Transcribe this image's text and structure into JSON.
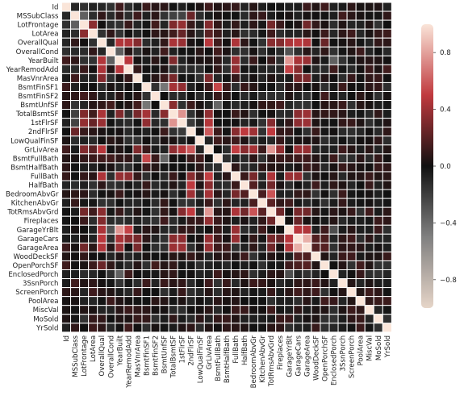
{
  "chart_data": {
    "type": "heatmap",
    "title": "",
    "xlabel": "",
    "ylabel": "",
    "labels": [
      "Id",
      "MSSubClass",
      "LotFrontage",
      "LotArea",
      "OverallQual",
      "OverallCond",
      "YearBuilt",
      "YearRemodAdd",
      "MasVnrArea",
      "BsmtFinSF1",
      "BsmtFinSF2",
      "BsmtUnfSF",
      "TotalBsmtSF",
      "1stFlrSF",
      "2ndFlrSF",
      "LowQualFinSF",
      "GrLivArea",
      "BsmtFullBath",
      "BsmtHalfBath",
      "FullBath",
      "HalfBath",
      "BedroomAbvGr",
      "KitchenAbvGr",
      "TotRmsAbvGrd",
      "Fireplaces",
      "GarageYrBlt",
      "GarageCars",
      "GarageArea",
      "WoodDeckSF",
      "OpenPorchSF",
      "EnclosedPorch",
      "3SsnPorch",
      "ScreenPorch",
      "PoolArea",
      "MiscVal",
      "MoSold",
      "YrSold"
    ],
    "strong_pairs": [
      [
        "MSSubClass",
        "LotFrontage",
        -0.39
      ],
      [
        "MSSubClass",
        "LotArea",
        -0.14
      ],
      [
        "MSSubClass",
        "2ndFlrSF",
        0.31
      ],
      [
        "MSSubClass",
        "1stFlrSF",
        -0.25
      ],
      [
        "MSSubClass",
        "TotalBsmtSF",
        -0.24
      ],
      [
        "LotFrontage",
        "LotArea",
        0.43
      ],
      [
        "LotFrontage",
        "1stFlrSF",
        0.46
      ],
      [
        "LotFrontage",
        "TotalBsmtSF",
        0.39
      ],
      [
        "LotFrontage",
        "GrLivArea",
        0.4
      ],
      [
        "LotFrontage",
        "TotRmsAbvGrd",
        0.35
      ],
      [
        "LotFrontage",
        "GarageArea",
        0.34
      ],
      [
        "LotArea",
        "1stFlrSF",
        0.3
      ],
      [
        "LotArea",
        "GrLivArea",
        0.26
      ],
      [
        "OverallQual",
        "YearBuilt",
        0.57
      ],
      [
        "OverallQual",
        "YearRemodAdd",
        0.55
      ],
      [
        "OverallQual",
        "MasVnrArea",
        0.41
      ],
      [
        "OverallQual",
        "TotalBsmtSF",
        0.54
      ],
      [
        "OverallQual",
        "1stFlrSF",
        0.48
      ],
      [
        "OverallQual",
        "GrLivArea",
        0.59
      ],
      [
        "OverallQual",
        "FullBath",
        0.55
      ],
      [
        "OverallQual",
        "TotRmsAbvGrd",
        0.43
      ],
      [
        "OverallQual",
        "Fireplaces",
        0.4
      ],
      [
        "OverallQual",
        "GarageYrBlt",
        0.55
      ],
      [
        "OverallQual",
        "GarageCars",
        0.6
      ],
      [
        "OverallQual",
        "GarageArea",
        0.56
      ],
      [
        "OverallQual",
        "OpenPorchSF",
        0.31
      ],
      [
        "OverallCond",
        "YearBuilt",
        -0.38
      ],
      [
        "OverallCond",
        "YearRemodAdd",
        0.07
      ],
      [
        "OverallCond",
        "GarageYrBlt",
        -0.32
      ],
      [
        "YearBuilt",
        "YearRemodAdd",
        0.59
      ],
      [
        "YearBuilt",
        "GarageYrBlt",
        0.83
      ],
      [
        "YearBuilt",
        "GarageCars",
        0.54
      ],
      [
        "YearBuilt",
        "GarageArea",
        0.48
      ],
      [
        "YearBuilt",
        "FullBath",
        0.47
      ],
      [
        "YearBuilt",
        "TotalBsmtSF",
        0.39
      ],
      [
        "YearBuilt",
        "EnclosedPorch",
        -0.39
      ],
      [
        "YearRemodAdd",
        "GarageYrBlt",
        0.64
      ],
      [
        "YearRemodAdd",
        "FullBath",
        0.44
      ],
      [
        "YearRemodAdd",
        "GarageCars",
        0.42
      ],
      [
        "MasVnrArea",
        "TotalBsmtSF",
        0.36
      ],
      [
        "MasVnrArea",
        "GrLivArea",
        0.39
      ],
      [
        "MasVnrArea",
        "GarageArea",
        0.37
      ],
      [
        "MasVnrArea",
        "GarageCars",
        0.36
      ],
      [
        "BsmtFinSF1",
        "BsmtUnfSF",
        -0.5
      ],
      [
        "BsmtFinSF1",
        "TotalBsmtSF",
        0.52
      ],
      [
        "BsmtFinSF1",
        "1stFlrSF",
        0.45
      ],
      [
        "BsmtFinSF1",
        "BsmtFullBath",
        0.65
      ],
      [
        "BsmtFinSF2",
        "BsmtHalfBath",
        0.07
      ],
      [
        "BsmtUnfSF",
        "TotalBsmtSF",
        0.42
      ],
      [
        "BsmtUnfSF",
        "BsmtFullBath",
        -0.42
      ],
      [
        "TotalBsmtSF",
        "1stFlrSF",
        0.82
      ],
      [
        "TotalBsmtSF",
        "GrLivArea",
        0.45
      ],
      [
        "TotalBsmtSF",
        "GarageCars",
        0.43
      ],
      [
        "TotalBsmtSF",
        "GarageArea",
        0.49
      ],
      [
        "1stFlrSF",
        "GrLivArea",
        0.57
      ],
      [
        "1stFlrSF",
        "TotRmsAbvGrd",
        0.41
      ],
      [
        "1stFlrSF",
        "GarageArea",
        0.49
      ],
      [
        "1stFlrSF",
        "GarageCars",
        0.44
      ],
      [
        "1stFlrSF",
        "2ndFlrSF",
        -0.2
      ],
      [
        "2ndFlrSF",
        "GrLivArea",
        0.69
      ],
      [
        "2ndFlrSF",
        "HalfBath",
        0.61
      ],
      [
        "2ndFlrSF",
        "BedroomAbvGr",
        0.5
      ],
      [
        "2ndFlrSF",
        "TotRmsAbvGrd",
        0.62
      ],
      [
        "2ndFlrSF",
        "FullBath",
        0.42
      ],
      [
        "GrLivArea",
        "FullBath",
        0.63
      ],
      [
        "GrLivArea",
        "HalfBath",
        0.42
      ],
      [
        "GrLivArea",
        "BedroomAbvGr",
        0.52
      ],
      [
        "GrLivArea",
        "TotRmsAbvGrd",
        0.83
      ],
      [
        "GrLivArea",
        "Fireplaces",
        0.46
      ],
      [
        "GrLivArea",
        "GarageCars",
        0.47
      ],
      [
        "GrLivArea",
        "GarageArea",
        0.47
      ],
      [
        "BsmtFullBath",
        "BsmtHalfBath",
        -0.15
      ],
      [
        "FullBath",
        "HalfBath",
        0.14
      ],
      [
        "FullBath",
        "BedroomAbvGr",
        0.36
      ],
      [
        "FullBath",
        "TotRmsAbvGrd",
        0.55
      ],
      [
        "FullBath",
        "GarageCars",
        0.47
      ],
      [
        "FullBath",
        "GarageYrBlt",
        0.48
      ],
      [
        "HalfBath",
        "BedroomAbvGr",
        0.23
      ],
      [
        "HalfBath",
        "TotRmsAbvGrd",
        0.34
      ],
      [
        "BedroomAbvGr",
        "TotRmsAbvGrd",
        0.68
      ],
      [
        "BedroomAbvGr",
        "KitchenAbvGr",
        0.2
      ],
      [
        "KitchenAbvGr",
        "TotRmsAbvGrd",
        0.26
      ],
      [
        "TotRmsAbvGrd",
        "Fireplaces",
        0.33
      ],
      [
        "TotRmsAbvGrd",
        "GarageCars",
        0.36
      ],
      [
        "TotRmsAbvGrd",
        "GarageArea",
        0.34
      ],
      [
        "Fireplaces",
        "GarageCars",
        0.3
      ],
      [
        "GarageYrBlt",
        "GarageCars",
        0.59
      ],
      [
        "GarageYrBlt",
        "GarageArea",
        0.56
      ],
      [
        "GarageCars",
        "GarageArea",
        0.88
      ],
      [
        "GarageCars",
        "WoodDeckSF",
        0.23
      ],
      [
        "GarageCars",
        "OpenPorchSF",
        0.21
      ],
      [
        "GarageArea",
        "WoodDeckSF",
        0.22
      ],
      [
        "GarageArea",
        "OpenPorchSF",
        0.24
      ],
      [
        "WoodDeckSF",
        "OpenPorchSF",
        0.06
      ],
      [
        "EnclosedPorch",
        "GarageYrBlt",
        -0.3
      ],
      [
        "PoolArea",
        "ScreenPorch",
        0.06
      ],
      [
        "MoSold",
        "YrSold",
        -0.15
      ]
    ],
    "colorbar": {
      "ticks": [
        "0.8",
        "0.4",
        "0.0",
        "−0.4",
        "−0.8"
      ],
      "range": [
        -1.0,
        1.0
      ],
      "colors": {
        "neg_end": "#e6d5c8",
        "neg_mid": "#808080",
        "zero": "#111111",
        "pos_mid": "#c0393e",
        "pos_end": "#fae5d9"
      }
    },
    "cell_border_color": "#ffffff",
    "grid": false,
    "legend": "right"
  }
}
